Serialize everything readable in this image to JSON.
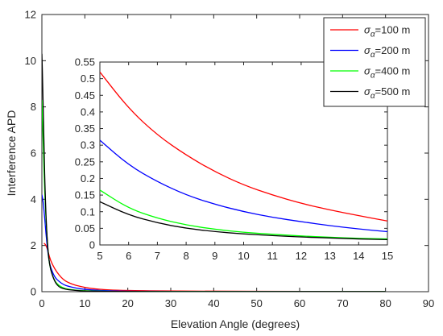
{
  "chart_data": [
    {
      "type": "line",
      "role": "main",
      "xlabel": "Elevation Angle (degrees)",
      "ylabel": "Interference APD",
      "xlim": [
        0,
        90
      ],
      "ylim": [
        0,
        12
      ],
      "x_ticks": [
        0,
        10,
        20,
        30,
        40,
        50,
        60,
        70,
        80,
        90
      ],
      "y_ticks": [
        0,
        2,
        4,
        6,
        8,
        10,
        12
      ],
      "grid": false,
      "legend_position": "top-right",
      "series": [
        {
          "name": "σα=100 m",
          "color": "#ff0000",
          "x": [
            0.5,
            1,
            1.5,
            2,
            3,
            4,
            5,
            6,
            7,
            8,
            10,
            12,
            15,
            20,
            30,
            40,
            60,
            80
          ],
          "y": [
            2.1,
            2.0,
            1.7,
            1.35,
            0.98,
            0.72,
            0.52,
            0.41,
            0.33,
            0.27,
            0.18,
            0.13,
            0.08,
            0.05,
            0.03,
            0.02,
            0.01,
            0.01
          ]
        },
        {
          "name": "σα=200 m",
          "color": "#0000ff",
          "x": [
            0,
            0.3,
            0.7,
            1,
            1.5,
            2,
            3,
            4,
            5,
            6,
            8,
            10,
            12,
            15,
            20,
            30,
            50,
            80
          ],
          "y": [
            4.2,
            3.9,
            3.1,
            2.4,
            1.5,
            1.05,
            0.62,
            0.44,
            0.31,
            0.24,
            0.15,
            0.1,
            0.07,
            0.04,
            0.02,
            0.01,
            0.005,
            0.004
          ]
        },
        {
          "name": "σα=400 m",
          "color": "#00ff00",
          "x": [
            0,
            0.3,
            0.6,
            1,
            1.5,
            2,
            3,
            4,
            5,
            6,
            8,
            10,
            15,
            20,
            40,
            80
          ],
          "y": [
            8.3,
            6.5,
            4.6,
            2.9,
            1.55,
            0.95,
            0.45,
            0.26,
            0.16,
            0.11,
            0.06,
            0.04,
            0.015,
            0.01,
            0.004,
            0.002
          ]
        },
        {
          "name": "σα=500 m",
          "color": "#000000",
          "x": [
            0,
            0.2,
            0.5,
            0.8,
            1.2,
            1.6,
            2,
            3,
            4,
            5,
            6,
            8,
            10,
            15,
            20,
            40,
            80
          ],
          "y": [
            10.3,
            9.0,
            6.2,
            4.0,
            2.3,
            1.45,
            0.95,
            0.42,
            0.2,
            0.13,
            0.09,
            0.05,
            0.03,
            0.012,
            0.008,
            0.003,
            0.001
          ]
        }
      ]
    },
    {
      "type": "line",
      "role": "inset",
      "xlim": [
        5,
        15
      ],
      "ylim": [
        0,
        0.55
      ],
      "x_ticks": [
        5,
        6,
        7,
        8,
        9,
        10,
        11,
        12,
        13,
        14,
        15
      ],
      "y_ticks": [
        0,
        0.05,
        0.1,
        0.15,
        0.2,
        0.25,
        0.3,
        0.35,
        0.4,
        0.45,
        0.5,
        0.55
      ],
      "x_tick_labels": [
        "5",
        "6",
        "7",
        "8",
        "9",
        "10",
        "11",
        "12",
        "13",
        "14",
        "15"
      ],
      "y_tick_labels": [
        "0",
        "0.05",
        "0.1",
        "0.15",
        "0.2",
        "0.25",
        "0.3",
        "0.35",
        "0.4",
        "0.45",
        "0.5",
        "0.55"
      ],
      "grid": false,
      "series": [
        {
          "name": "σα=100 m",
          "color": "#ff0000",
          "x": [
            5,
            6,
            7,
            8,
            9,
            10,
            11,
            12,
            13,
            14,
            15
          ],
          "y": [
            0.52,
            0.41,
            0.33,
            0.27,
            0.22,
            0.18,
            0.15,
            0.125,
            0.105,
            0.088,
            0.072
          ]
        },
        {
          "name": "σα=200 m",
          "color": "#0000ff",
          "x": [
            5,
            6,
            7,
            8,
            9,
            10,
            11,
            12,
            13,
            14,
            15
          ],
          "y": [
            0.315,
            0.24,
            0.19,
            0.15,
            0.122,
            0.1,
            0.083,
            0.07,
            0.058,
            0.048,
            0.04
          ]
        },
        {
          "name": "σα=400 m",
          "color": "#00ff00",
          "x": [
            5,
            6,
            7,
            8,
            9,
            10,
            11,
            12,
            13,
            14,
            15
          ],
          "y": [
            0.165,
            0.11,
            0.08,
            0.06,
            0.047,
            0.038,
            0.032,
            0.027,
            0.023,
            0.02,
            0.018
          ]
        },
        {
          "name": "σα=500 m",
          "color": "#000000",
          "x": [
            5,
            6,
            7,
            8,
            9,
            10,
            11,
            12,
            13,
            14,
            15
          ],
          "y": [
            0.13,
            0.09,
            0.066,
            0.05,
            0.04,
            0.033,
            0.028,
            0.024,
            0.021,
            0.018,
            0.016
          ]
        }
      ]
    }
  ],
  "legend": [
    {
      "symbol": "σ",
      "subscript": "α",
      "text": "=100 m",
      "color": "#ff0000"
    },
    {
      "symbol": "σ",
      "subscript": "α",
      "text": "=200 m",
      "color": "#0000ff"
    },
    {
      "symbol": "σ",
      "subscript": "α",
      "text": "=400 m",
      "color": "#00ff00"
    },
    {
      "symbol": "σ",
      "subscript": "α",
      "text": "=500 m",
      "color": "#000000"
    }
  ]
}
